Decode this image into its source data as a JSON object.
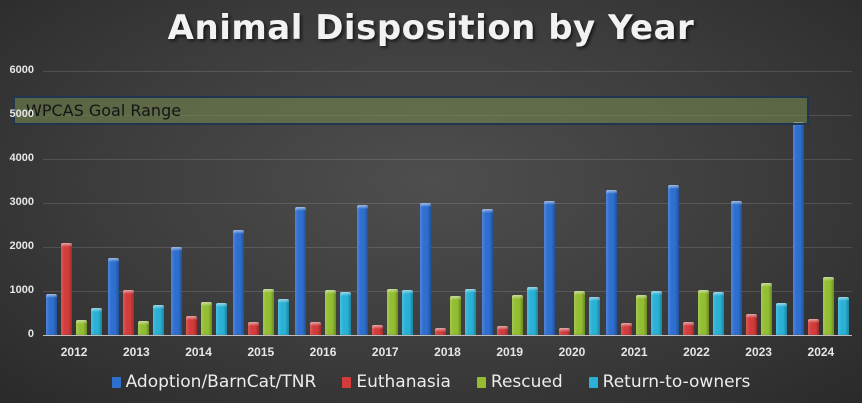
{
  "chart_data": {
    "type": "bar",
    "title": "Animal Disposition by Year",
    "xlabel": "",
    "ylabel": "",
    "ylim": [
      0,
      6000
    ],
    "yticks": [
      0,
      1000,
      2000,
      3000,
      4000,
      5000,
      6000
    ],
    "grid": true,
    "legend_position": "bottom",
    "categories": [
      "2012",
      "2013",
      "2014",
      "2015",
      "2016",
      "2017",
      "2018",
      "2019",
      "2020",
      "2021",
      "2022",
      "2023",
      "2024"
    ],
    "series": [
      {
        "name": "Adoption/BarnCat/TNR",
        "color": "#2f6fd0",
        "values": [
          930,
          1750,
          2000,
          2390,
          2920,
          2960,
          3000,
          2870,
          3040,
          3300,
          3400,
          3040,
          4850
        ]
      },
      {
        "name": "Euthanasia",
        "color": "#d43c3c",
        "values": [
          2090,
          1020,
          430,
          290,
          290,
          220,
          160,
          200,
          150,
          270,
          290,
          470,
          370
        ]
      },
      {
        "name": "Rescued",
        "color": "#94be32",
        "values": [
          340,
          320,
          750,
          1040,
          1020,
          1040,
          880,
          900,
          1000,
          910,
          1020,
          1180,
          1320
        ]
      },
      {
        "name": "Return-to-owners",
        "color": "#29b2d6",
        "values": [
          610,
          680,
          730,
          810,
          980,
          1020,
          1050,
          1090,
          860,
          1000,
          980,
          730,
          870
        ]
      }
    ],
    "annotations": [
      {
        "type": "band",
        "label": "WPCAS Goal Range",
        "y_range": [
          4800,
          5450
        ],
        "color": "#788c50"
      }
    ]
  },
  "chart": {
    "title": "Animal Disposition by Year",
    "goal_label": "WPCAS Goal Range"
  }
}
